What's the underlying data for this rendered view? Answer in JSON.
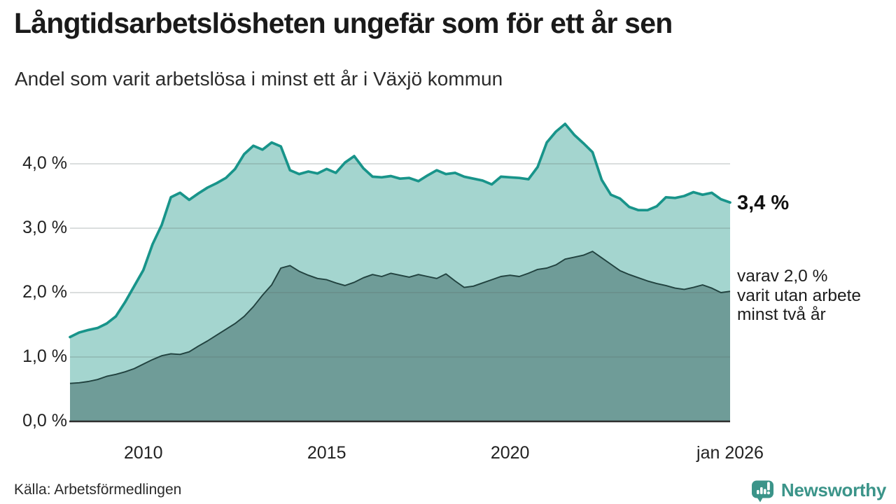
{
  "header": {
    "title": "Långtidsarbetslösheten ungefär som för ett år sen",
    "subtitle": "Andel som varit arbetslösa i minst ett år i Växjö kommun"
  },
  "annotations": {
    "series_total_end_label": "3,4 %",
    "series_subset_end_label_lines": [
      "varav 2,0 %",
      "varit utan arbete",
      "minst två år"
    ]
  },
  "footer": {
    "source": "Källa: Arbetsförmedlingen",
    "brand": "Newsworthy"
  },
  "colors": {
    "line_total": "#18948a",
    "fill_total": "#a4d5cf",
    "line_subset": "#21423f",
    "fill_subset": "#6f9c98",
    "grid": "#5a6a68",
    "axis": "#2e2e2e",
    "brand_teal": "#3b9489"
  },
  "chart_data": {
    "type": "area",
    "title": "Långtidsarbetslösheten ungefär som för ett år sen",
    "subtitle": "Andel som varit arbetslösa i minst ett år i Växjö kommun",
    "unit": "%",
    "grid": "horizontal",
    "legend_position": "right-annotations",
    "x_domain": [
      2008,
      2026
    ],
    "y_domain": [
      0,
      4.7
    ],
    "x_start_year": 2008,
    "x_step_years": 0.25,
    "x_ticks": [
      {
        "value": 2010,
        "label": "2010"
      },
      {
        "value": 2015,
        "label": "2015"
      },
      {
        "value": 2020,
        "label": "2020"
      },
      {
        "value": 2026,
        "label": "jan 2026"
      }
    ],
    "y_ticks": [
      {
        "value": 4,
        "label": "4,0 %"
      },
      {
        "value": 3,
        "label": "3,0 %"
      },
      {
        "value": 2,
        "label": "2,0 %"
      },
      {
        "value": 1,
        "label": "1,0 %"
      },
      {
        "value": 0,
        "label": "0,0 %"
      }
    ],
    "series": [
      {
        "name": "Andel arbetslösa minst ett år",
        "end_value": 3.4,
        "values": [
          1.31,
          1.38,
          1.42,
          1.45,
          1.52,
          1.63,
          1.85,
          2.1,
          2.35,
          2.75,
          3.05,
          3.48,
          3.55,
          3.44,
          3.54,
          3.63,
          3.7,
          3.78,
          3.92,
          4.15,
          4.28,
          4.22,
          4.33,
          4.27,
          3.9,
          3.84,
          3.88,
          3.85,
          3.92,
          3.86,
          4.02,
          4.12,
          3.93,
          3.8,
          3.79,
          3.81,
          3.77,
          3.78,
          3.73,
          3.82,
          3.9,
          3.84,
          3.86,
          3.8,
          3.77,
          3.74,
          3.68,
          3.8,
          3.79,
          3.78,
          3.76,
          3.95,
          4.33,
          4.5,
          4.62,
          4.45,
          4.32,
          4.18,
          3.75,
          3.52,
          3.46,
          3.33,
          3.28,
          3.28,
          3.34,
          3.48,
          3.47,
          3.5,
          3.56,
          3.52,
          3.55,
          3.45,
          3.4
        ]
      },
      {
        "name": "Varav utan arbete minst två år",
        "end_value": 2.0,
        "values": [
          0.59,
          0.6,
          0.62,
          0.65,
          0.7,
          0.73,
          0.77,
          0.82,
          0.89,
          0.96,
          1.02,
          1.05,
          1.04,
          1.08,
          1.17,
          1.25,
          1.34,
          1.43,
          1.52,
          1.63,
          1.78,
          1.96,
          2.12,
          2.38,
          2.42,
          2.33,
          2.27,
          2.22,
          2.2,
          2.15,
          2.11,
          2.16,
          2.23,
          2.28,
          2.25,
          2.3,
          2.27,
          2.24,
          2.28,
          2.25,
          2.22,
          2.29,
          2.18,
          2.08,
          2.1,
          2.15,
          2.2,
          2.25,
          2.27,
          2.25,
          2.3,
          2.36,
          2.38,
          2.43,
          2.52,
          2.55,
          2.58,
          2.64,
          2.54,
          2.44,
          2.34,
          2.28,
          2.23,
          2.18,
          2.14,
          2.11,
          2.07,
          2.05,
          2.08,
          2.12,
          2.07,
          2.0,
          2.02
        ]
      }
    ]
  }
}
